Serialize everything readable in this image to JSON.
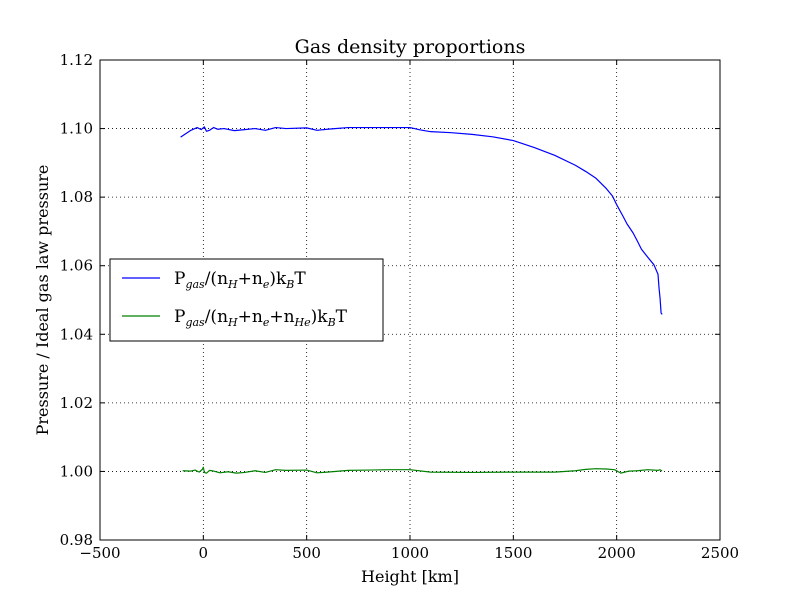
{
  "chart_data": {
    "type": "line",
    "title": "Gas density proportions",
    "xlabel": "Height [km]",
    "ylabel": "Pressure / Ideal gas law pressure",
    "xlim": [
      -500,
      2500
    ],
    "ylim": [
      0.98,
      1.12
    ],
    "xticks": [
      -500,
      0,
      500,
      1000,
      1500,
      2000,
      2500
    ],
    "xtick_labels": [
      "−500",
      "0",
      "500",
      "1000",
      "1500",
      "2000",
      "2500"
    ],
    "yticks": [
      0.98,
      1.0,
      1.02,
      1.04,
      1.06,
      1.08,
      1.1,
      1.12
    ],
    "ytick_labels": [
      "0.98",
      "1.00",
      "1.02",
      "1.04",
      "1.06",
      "1.08",
      "1.10",
      "1.12"
    ],
    "grid": true,
    "legend_position": "center-left",
    "series": [
      {
        "color": "#0000ff",
        "legend": {
          "main": "P",
          "sub1": "gas",
          "mid1": "/(n",
          "sub2": "H",
          "mid2": "+n",
          "sub3": "e",
          "mid3": ")k",
          "sub4": "B",
          "tail": "T"
        },
        "x": [
          -110,
          -60,
          -30,
          -10,
          5,
          15,
          30,
          50,
          70,
          100,
          150,
          200,
          250,
          300,
          350,
          400,
          500,
          550,
          600,
          700,
          800,
          900,
          1000,
          1050,
          1100,
          1200,
          1300,
          1400,
          1500,
          1600,
          1700,
          1800,
          1850,
          1900,
          1950,
          1980,
          2000,
          2030,
          2050,
          2080,
          2100,
          2120,
          2150,
          2180,
          2200,
          2205,
          2210,
          2215,
          2220
        ],
        "y": [
          1.0975,
          1.0995,
          1.1003,
          1.0997,
          1.1005,
          1.0992,
          1.0995,
          1.1003,
          1.0998,
          1.1,
          1.0994,
          1.0997,
          1.1,
          1.0995,
          1.1003,
          1.1,
          1.1002,
          1.0995,
          1.0998,
          1.1003,
          1.1003,
          1.1003,
          1.1003,
          1.0996,
          1.0991,
          1.0988,
          1.0983,
          1.0976,
          1.0965,
          1.0945,
          1.0922,
          1.0893,
          1.0875,
          1.0855,
          1.0825,
          1.0803,
          1.0778,
          1.0745,
          1.0722,
          1.0695,
          1.0672,
          1.0648,
          1.0625,
          1.0603,
          1.0575,
          1.0535,
          1.0505,
          1.0462,
          1.0458
        ]
      },
      {
        "color": "#008000",
        "legend": {
          "main": "P",
          "sub1": "gas",
          "mid1": "/(n",
          "sub2": "H",
          "mid2": "+n",
          "sub3": "e",
          "mid3": "+n",
          "sub4": "He",
          "mid4": ")k",
          "sub5": "B",
          "tail": "T"
        },
        "x": [
          -100,
          -60,
          -40,
          -20,
          -5,
          0,
          5,
          15,
          30,
          50,
          80,
          120,
          160,
          200,
          250,
          300,
          350,
          400,
          500,
          550,
          600,
          700,
          800,
          900,
          1000,
          1100,
          1300,
          1500,
          1700,
          1800,
          1850,
          1900,
          1950,
          1990,
          2020,
          2060,
          2100,
          2150,
          2200,
          2210,
          2220
        ],
        "y": [
          1.0002,
          1.0001,
          1.0004,
          0.9998,
          1.0006,
          1.0012,
          0.9997,
          0.9995,
          1.0003,
          1.0001,
          0.9996,
          0.9999,
          0.9995,
          0.9997,
          1.0002,
          0.9997,
          1.0005,
          1.0003,
          1.0004,
          0.9996,
          0.9998,
          1.0003,
          1.0004,
          1.0005,
          1.0005,
          0.9998,
          0.9997,
          0.9998,
          0.9998,
          1.0002,
          1.0006,
          1.0008,
          1.0007,
          1.0005,
          0.9995,
          1.0001,
          1.0002,
          1.0005,
          1.0003,
          1.0005,
          1.0001
        ]
      }
    ]
  }
}
